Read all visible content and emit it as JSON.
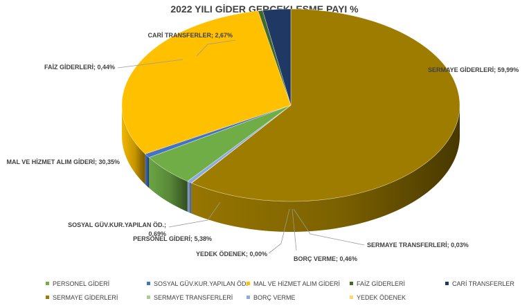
{
  "chart_data": {
    "type": "pie",
    "title": "2022 YILI GİDER GERÇEKLEŞME PAYI %",
    "slices": [
      {
        "name": "PERSONEL GİDERİ",
        "value": 5.38,
        "label": "PERSONEL GİDERİ; 5,38%",
        "color": "#70AD47"
      },
      {
        "name": "SOSYAL GÜV.KUR.YAPILAN ÖD.",
        "value": 0.69,
        "label_lines": [
          "SOSYAL GÜV.KUR.YAPILAN ÖD.;",
          "0,69%"
        ],
        "color": "#4472C4"
      },
      {
        "name": "MAL VE HİZMET ALIM GİDERİ",
        "value": 30.35,
        "label": "MAL VE HİZMET ALIM GİDERİ; 30,35%",
        "color": "#FFC000"
      },
      {
        "name": "FAİZ GİDERLERİ",
        "value": 0.44,
        "label": "FAİZ GİDERLERİ; 0,44%",
        "color": "#43682B"
      },
      {
        "name": "CARİ TRANSFERLER",
        "value": 2.67,
        "label": "CARİ TRANSFERLER; 2,67%",
        "color": "#203864"
      },
      {
        "name": "SERMAYE GİDERLERİ",
        "value": 59.99,
        "label": "SERMAYE GİDERLERİ; 59,99%",
        "color": "#9E7C00"
      },
      {
        "name": "SERMAYE TRANSFERLERİ",
        "value": 0.03,
        "label": "SERMAYE TRANSFERLERİ; 0,03%",
        "color": "#A9D18E"
      },
      {
        "name": "BORÇ VERME",
        "value": 0.46,
        "label": "BORÇ VERME; 0,46%",
        "color": "#8FAADC"
      },
      {
        "name": "YEDEK ÖDENEK",
        "value": 0.0,
        "label": "YEDEK ÖDENEK; 0,00%",
        "color": "#FFD966"
      }
    ],
    "legend_position": "bottom"
  }
}
